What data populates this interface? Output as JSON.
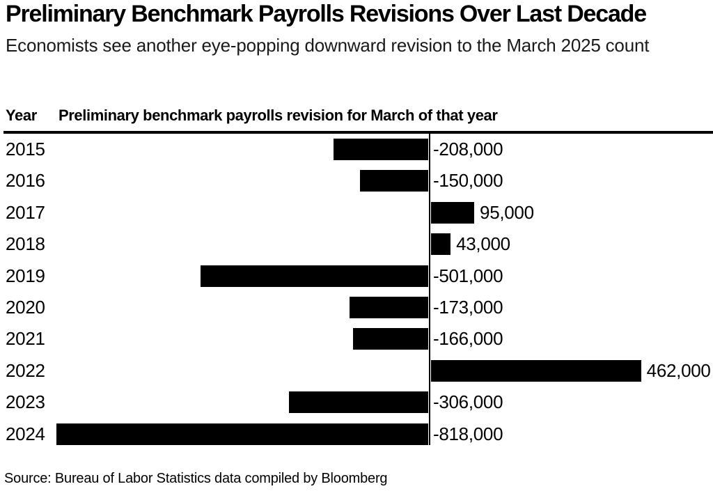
{
  "header": {
    "title": "Preliminary Benchmark Payrolls Revisions Over Last Decade",
    "subtitle": "Economists see another eye-popping downward revision to the March 2025 count"
  },
  "columns": {
    "year": "Year",
    "revision": "Preliminary benchmark payrolls revision for March of that year"
  },
  "chart_data": {
    "type": "bar",
    "orientation": "horizontal",
    "title": "Preliminary Benchmark Payrolls Revisions Over Last Decade",
    "xlabel": "Preliminary benchmark payrolls revision for March of that year",
    "ylabel": "Year",
    "categories": [
      "2015",
      "2016",
      "2017",
      "2018",
      "2019",
      "2020",
      "2021",
      "2022",
      "2023",
      "2024"
    ],
    "values": [
      -208000,
      -150000,
      95000,
      43000,
      -501000,
      -173000,
      -166000,
      462000,
      -306000,
      -818000
    ],
    "value_labels": [
      "-208,000",
      "-150,000",
      "95,000",
      "43,000",
      "-501,000",
      "-173,000",
      "-166,000",
      "462,000",
      "-306,000",
      "-818,000"
    ],
    "xlim": [
      -860000,
      560000
    ],
    "grid": false,
    "legend": "none",
    "bar_color": "#000000",
    "zero_line_color": "#000000"
  },
  "footer": {
    "source": "Source: Bureau of Labor Statistics data compiled by Bloomberg"
  },
  "colors": {
    "background": "#ffffff",
    "title_text": "#000000",
    "subtitle_text": "#1a1a1a",
    "bar": "#000000"
  }
}
